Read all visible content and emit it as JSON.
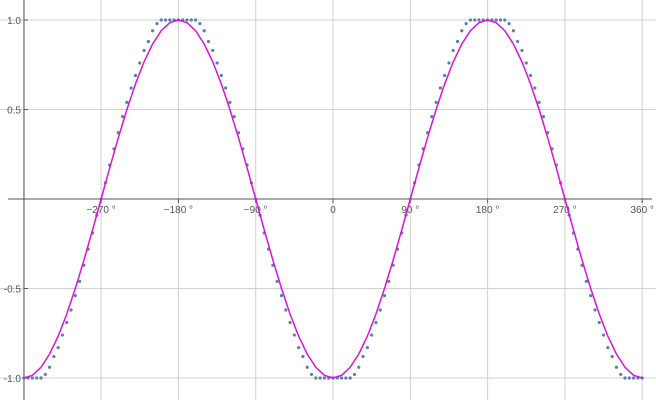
{
  "chart_data": {
    "type": "scatter",
    "title": "",
    "xlabel": "",
    "ylabel": "",
    "xlim": [
      -362,
      370
    ],
    "ylim": [
      -1.02,
      1.02
    ],
    "grid": true,
    "x_ticks": [
      -270,
      -180,
      -90,
      0,
      90,
      180,
      270,
      360
    ],
    "x_tick_labels": [
      "−270 °",
      "−180 °",
      "−90 °",
      "0",
      "90 °",
      "180 °",
      "270 °",
      "360 °"
    ],
    "y_ticks": [
      -1.0,
      -0.5,
      0.5,
      1.0
    ],
    "y_tick_labels": [
      "-1.0",
      "-0.5",
      "0.5",
      "1.0"
    ],
    "colors": {
      "points": "#5b7fb0",
      "line": "#dd11dd",
      "grid": "#d0d0d0",
      "axis": "#555555"
    },
    "series": [
      {
        "type": "scatter",
        "x": [
          -360,
          -355,
          -350,
          -345,
          -340,
          -335,
          -330,
          -325,
          -320,
          -315,
          -310,
          -305,
          -300,
          -295,
          -290,
          -285,
          -280,
          -275,
          -270,
          -265,
          -260,
          -255,
          -250,
          -245,
          -240,
          -235,
          -230,
          -225,
          -220,
          -215,
          -210,
          -205,
          -200,
          -195,
          -190,
          -185,
          -180,
          -175,
          -170,
          -165,
          -160,
          -155,
          -150,
          -145,
          -140,
          -135,
          -130,
          -125,
          -120,
          -115,
          -110,
          -105,
          -100,
          -95,
          -90,
          -85,
          -80,
          -75,
          -70,
          -65,
          -60,
          -55,
          -50,
          -45,
          -40,
          -35,
          -30,
          -25,
          -20,
          -15,
          -10,
          -5,
          0,
          5,
          10,
          15,
          20,
          25,
          30,
          35,
          40,
          45,
          50,
          55,
          60,
          65,
          70,
          75,
          80,
          85,
          90,
          95,
          100,
          105,
          110,
          115,
          120,
          125,
          130,
          135,
          140,
          145,
          150,
          155,
          160,
          165,
          170,
          175,
          180,
          185,
          190,
          195,
          200,
          205,
          210,
          215,
          220,
          225,
          230,
          235,
          240,
          245,
          250,
          255,
          260,
          265,
          270,
          275,
          280,
          285,
          290,
          295,
          300,
          305,
          310,
          315,
          320,
          325,
          330,
          335,
          340,
          345,
          350,
          355,
          360
        ],
        "y": [
          -1,
          -1,
          -1,
          -1,
          -1,
          -0.98,
          -0.94,
          -0.88,
          -0.83,
          -0.76,
          -0.69,
          -0.62,
          -0.54,
          -0.46,
          -0.37,
          -0.28,
          -0.19,
          -0.09,
          0,
          0.09,
          0.19,
          0.28,
          0.37,
          0.46,
          0.54,
          0.62,
          0.69,
          0.76,
          0.83,
          0.88,
          0.94,
          0.98,
          1,
          1,
          1,
          1,
          1,
          1,
          1,
          1,
          1,
          0.98,
          0.94,
          0.88,
          0.83,
          0.76,
          0.69,
          0.62,
          0.54,
          0.46,
          0.37,
          0.28,
          0.19,
          0.09,
          0,
          -0.09,
          -0.19,
          -0.28,
          -0.37,
          -0.46,
          -0.54,
          -0.62,
          -0.69,
          -0.76,
          -0.83,
          -0.88,
          -0.94,
          -0.98,
          -1,
          -1,
          -1,
          -1,
          -1,
          -1,
          -1,
          -1,
          -1,
          -0.98,
          -0.94,
          -0.88,
          -0.83,
          -0.76,
          -0.69,
          -0.62,
          -0.54,
          -0.46,
          -0.37,
          -0.28,
          -0.19,
          -0.09,
          0,
          0.09,
          0.19,
          0.28,
          0.37,
          0.46,
          0.54,
          0.62,
          0.69,
          0.76,
          0.83,
          0.88,
          0.94,
          0.98,
          1,
          1,
          1,
          1,
          1,
          1,
          1,
          1,
          1,
          0.98,
          0.94,
          0.88,
          0.83,
          0.76,
          0.69,
          0.62,
          0.54,
          0.46,
          0.37,
          0.28,
          0.19,
          0.09,
          0,
          -0.09,
          -0.19,
          -0.28,
          -0.37,
          -0.46,
          -0.54,
          -0.62,
          -0.69,
          -0.76,
          -0.83,
          -0.88,
          -0.94,
          -0.98,
          -1,
          -1,
          -1,
          -1,
          -1
        ]
      },
      {
        "type": "line",
        "x": [
          -360,
          -350,
          -340,
          -330,
          -320,
          -310,
          -300,
          -290,
          -280,
          -270,
          -260,
          -250,
          -240,
          -230,
          -220,
          -210,
          -200,
          -190,
          -180,
          -170,
          -160,
          -150,
          -140,
          -130,
          -120,
          -110,
          -100,
          -90,
          -80,
          -70,
          -60,
          -50,
          -40,
          -30,
          -20,
          -10,
          0,
          10,
          20,
          30,
          40,
          50,
          60,
          70,
          80,
          90,
          100,
          110,
          120,
          130,
          140,
          150,
          160,
          170,
          180,
          190,
          200,
          210,
          220,
          230,
          240,
          250,
          260,
          270,
          280,
          290,
          300,
          310,
          320,
          330,
          340,
          350,
          360
        ],
        "y": [
          -1,
          -0.985,
          -0.94,
          -0.866,
          -0.766,
          -0.643,
          -0.5,
          -0.342,
          -0.174,
          0,
          0.174,
          0.342,
          0.5,
          0.643,
          0.766,
          0.866,
          0.94,
          0.985,
          1,
          0.985,
          0.94,
          0.866,
          0.766,
          0.643,
          0.5,
          0.342,
          0.174,
          0,
          -0.174,
          -0.342,
          -0.5,
          -0.643,
          -0.766,
          -0.866,
          -0.94,
          -0.985,
          -1,
          -0.985,
          -0.94,
          -0.866,
          -0.766,
          -0.643,
          -0.5,
          -0.342,
          -0.174,
          0,
          0.174,
          0.342,
          0.5,
          0.643,
          0.766,
          0.866,
          0.94,
          0.985,
          1,
          0.985,
          0.94,
          0.866,
          0.766,
          0.643,
          0.5,
          0.342,
          0.174,
          0,
          -0.174,
          -0.342,
          -0.5,
          -0.643,
          -0.766,
          -0.866,
          -0.94,
          -0.985,
          -1
        ]
      }
    ]
  }
}
